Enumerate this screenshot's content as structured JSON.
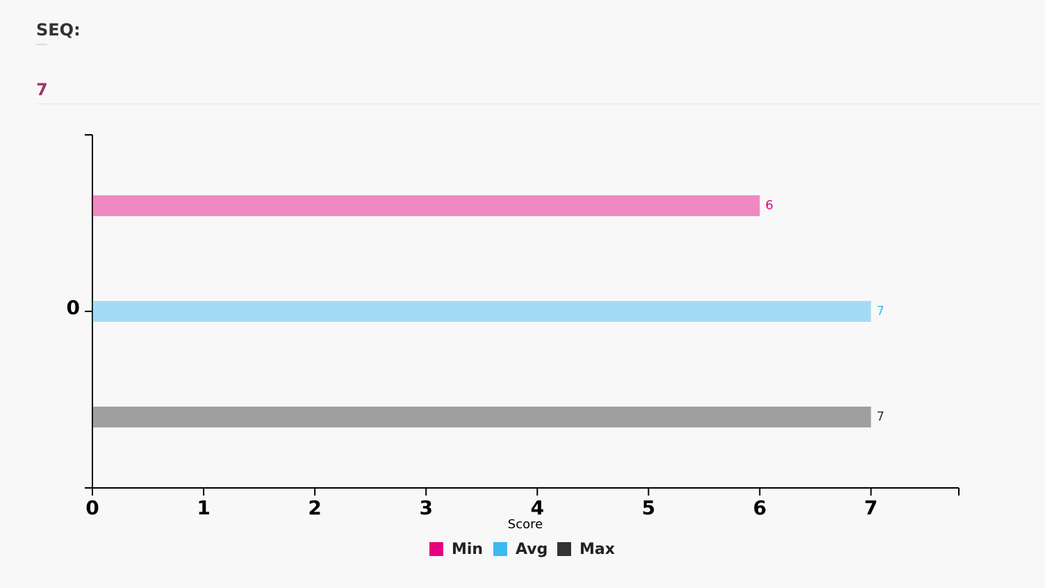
{
  "header": {
    "label": "SEQ:",
    "value": 7
  },
  "chart_data": {
    "type": "hbar",
    "categories": [
      "0"
    ],
    "series": [
      {
        "name": "Min",
        "color": "#e6007e",
        "values": [
          6
        ]
      },
      {
        "name": "Avg",
        "color": "#3db8f0",
        "values": [
          7
        ]
      },
      {
        "name": "Max",
        "color": "#333333",
        "values": [
          7
        ]
      }
    ],
    "xlabel": "Score",
    "xlim": [
      0,
      7.79
    ],
    "xticks": [
      0,
      1,
      2,
      3,
      4,
      5,
      6,
      7
    ]
  }
}
